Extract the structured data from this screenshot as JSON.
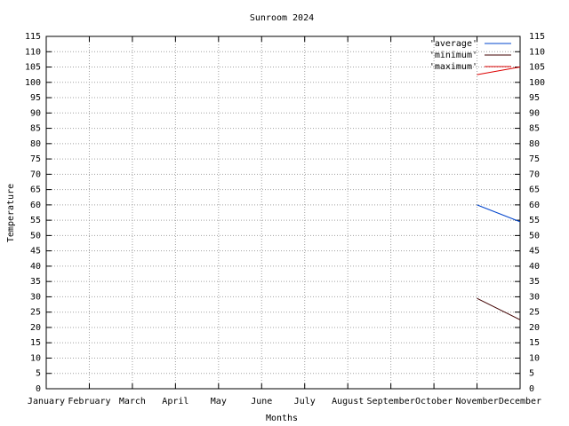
{
  "chart_data": {
    "type": "line",
    "title": "Sunroom 2024",
    "x_label": "Months",
    "y_label": "Temperature",
    "categories": [
      "January",
      "February",
      "March",
      "April",
      "May",
      "June",
      "July",
      "August",
      "September",
      "October",
      "November",
      "December"
    ],
    "series": [
      {
        "name": "'average'",
        "color": "#0044cc",
        "values": [
          null,
          null,
          null,
          null,
          null,
          null,
          null,
          null,
          null,
          null,
          60,
          54.5
        ]
      },
      {
        "name": "'minimum'",
        "color": "#400000",
        "values": [
          null,
          null,
          null,
          null,
          null,
          null,
          null,
          null,
          null,
          null,
          29.5,
          22.5
        ]
      },
      {
        "name": "'maximum'",
        "color": "#dd0000",
        "values": [
          null,
          null,
          null,
          null,
          null,
          null,
          null,
          null,
          null,
          null,
          102.5,
          105
        ]
      }
    ],
    "ylim": [
      0,
      115
    ],
    "yticks": [
      0,
      5,
      10,
      15,
      20,
      25,
      30,
      35,
      40,
      45,
      50,
      55,
      60,
      65,
      70,
      75,
      80,
      85,
      90,
      95,
      100,
      105,
      110,
      115
    ],
    "y2lim": [
      0,
      115
    ],
    "y2ticks": [
      0,
      5,
      10,
      15,
      20,
      25,
      30,
      35,
      40,
      45,
      50,
      55,
      60,
      65,
      70,
      75,
      80,
      85,
      90,
      95,
      100,
      105,
      110,
      115
    ],
    "grid": true,
    "legend": "top-right"
  }
}
